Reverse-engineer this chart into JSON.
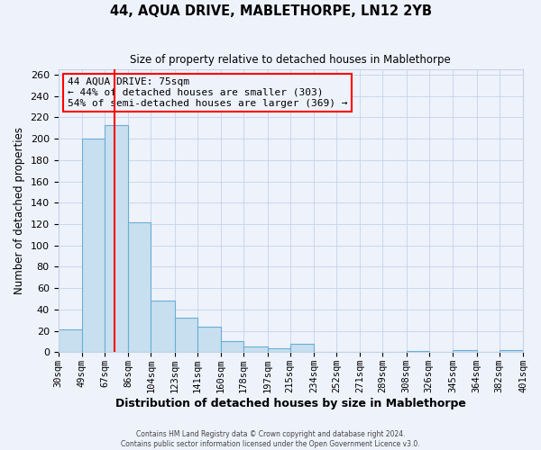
{
  "title": "44, AQUA DRIVE, MABLETHORPE, LN12 2YB",
  "subtitle": "Size of property relative to detached houses in Mablethorpe",
  "xlabel": "Distribution of detached houses by size in Mablethorpe",
  "ylabel": "Number of detached properties",
  "bar_values": [
    21,
    200,
    213,
    122,
    48,
    32,
    24,
    10,
    5,
    4,
    8,
    0,
    0,
    0,
    0,
    1,
    0,
    2,
    0,
    2
  ],
  "bar_labels": [
    "30sqm",
    "49sqm",
    "67sqm",
    "86sqm",
    "104sqm",
    "123sqm",
    "141sqm",
    "160sqm",
    "178sqm",
    "197sqm",
    "215sqm",
    "234sqm",
    "252sqm",
    "271sqm",
    "289sqm",
    "308sqm",
    "326sqm",
    "345sqm",
    "364sqm",
    "382sqm",
    "401sqm"
  ],
  "bar_color": "#c8dff0",
  "bar_edge_color": "#6aaed6",
  "vline_x": 75,
  "vline_color": "red",
  "annotation_title": "44 AQUA DRIVE: 75sqm",
  "annotation_line1": "← 44% of detached houses are smaller (303)",
  "annotation_line2": "54% of semi-detached houses are larger (369) →",
  "annotation_box_color": "red",
  "ylim": [
    0,
    265
  ],
  "yticks": [
    0,
    20,
    40,
    60,
    80,
    100,
    120,
    140,
    160,
    180,
    200,
    220,
    240,
    260
  ],
  "footer1": "Contains HM Land Registry data © Crown copyright and database right 2024.",
  "footer2": "Contains public sector information licensed under the Open Government Licence v3.0.",
  "background_color": "#eef2fb",
  "grid_color": "#c5d3e8",
  "bin_edges": [
    30,
    49,
    67,
    86,
    104,
    123,
    141,
    160,
    178,
    197,
    215,
    234,
    252,
    271,
    289,
    308,
    326,
    345,
    364,
    382,
    401
  ]
}
